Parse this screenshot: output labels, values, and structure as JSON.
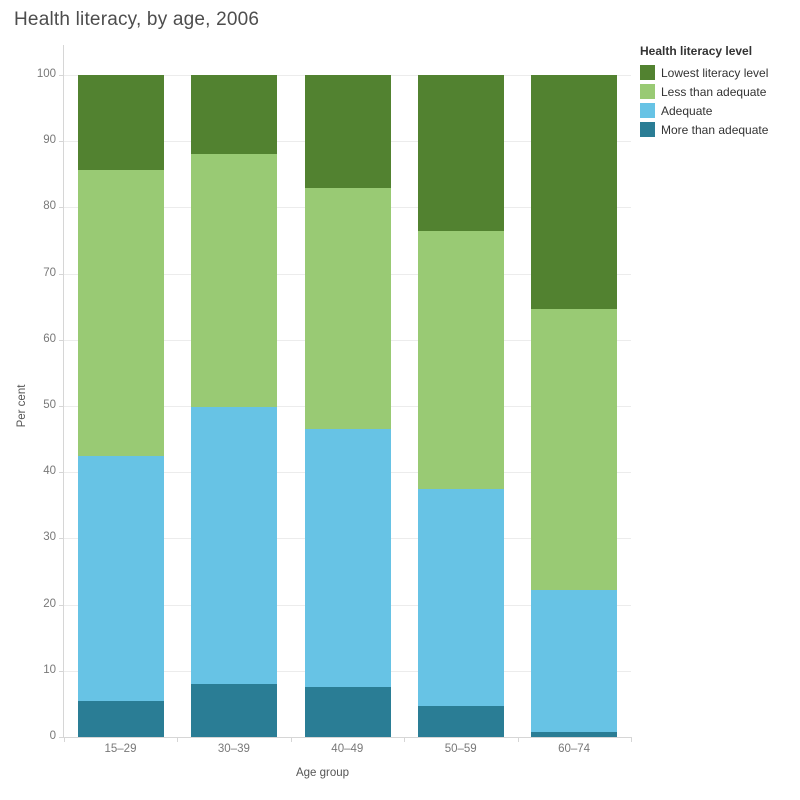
{
  "title": "Health literacy, by age, 2006",
  "y_axis": {
    "label": "Per cent",
    "ticks": [
      0,
      10,
      20,
      30,
      40,
      50,
      60,
      70,
      80,
      90,
      100
    ]
  },
  "x_axis": {
    "label": "Age group"
  },
  "legend": {
    "title": "Health literacy level",
    "entries": [
      "Lowest literacy level",
      "Less than adequate",
      "Adequate",
      "More than adequate"
    ]
  },
  "colors": {
    "lowest_literacy_level": "#528230",
    "less_than_adequate": "#99CA74",
    "adequate": "#67C3E5",
    "more_than_adequate": "#2A7D95",
    "gridline": "#ececec",
    "axis_line": "#d6d6d6",
    "tick_text": "#787878",
    "title_text": "#4d4d4d"
  },
  "chart_data": {
    "type": "bar",
    "stacked": true,
    "title": "Health literacy, by age, 2006",
    "xlabel": "Age group",
    "ylabel": "Per cent",
    "ylim": [
      0,
      100
    ],
    "yticks": [
      0,
      10,
      20,
      30,
      40,
      50,
      60,
      70,
      80,
      90,
      100
    ],
    "grid": true,
    "legend_position": "top-right",
    "categories": [
      "15–29",
      "30–39",
      "40–49",
      "50–59",
      "60–74"
    ],
    "series": [
      {
        "name": "More than adequate",
        "color": "#2A7D95",
        "values": [
          5.5,
          8.0,
          7.5,
          4.7,
          0.8
        ]
      },
      {
        "name": "Adequate",
        "color": "#67C3E5",
        "values": [
          37.0,
          41.9,
          39.0,
          32.7,
          21.4
        ]
      },
      {
        "name": "Less than adequate",
        "color": "#99CA74",
        "values": [
          43.2,
          38.2,
          36.5,
          39.1,
          42.5
        ]
      },
      {
        "name": "Lowest literacy level",
        "color": "#528230",
        "values": [
          14.3,
          11.9,
          17.0,
          23.5,
          35.3
        ]
      }
    ]
  }
}
